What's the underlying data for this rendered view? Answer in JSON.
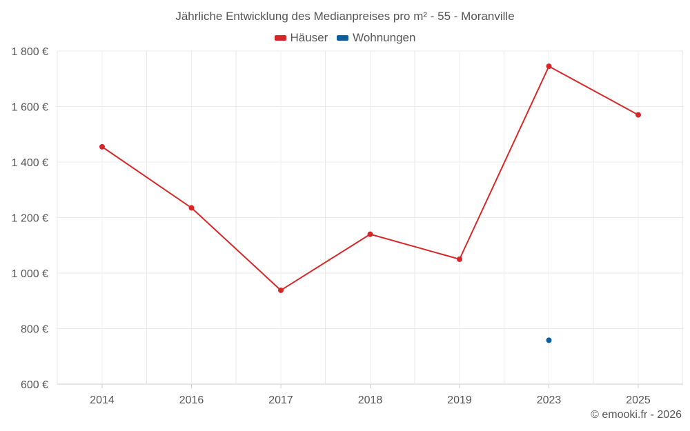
{
  "chart_data": {
    "type": "line",
    "title": "Jährliche Entwicklung des Medianpreises pro m² - 55 - Moranville",
    "categories": [
      "2014",
      "2016",
      "2017",
      "2018",
      "2019",
      "2023",
      "2025"
    ],
    "series": [
      {
        "name": "Häuser",
        "color": "#d62728",
        "values": [
          1455,
          1235,
          938,
          1140,
          1050,
          1745,
          1570
        ]
      },
      {
        "name": "Wohnungen",
        "color": "#0b5fa0",
        "values": [
          null,
          null,
          null,
          null,
          null,
          758,
          null
        ]
      }
    ],
    "ylim": [
      600,
      1800
    ],
    "yticks": [
      600,
      800,
      1000,
      1200,
      1400,
      1600,
      1800
    ],
    "ytick_labels": [
      "600 €",
      "800 €",
      "1 000 €",
      "1 200 €",
      "1 400 €",
      "1 600 €",
      "1 800 €"
    ],
    "xlabel": "",
    "ylabel": "",
    "grid": true,
    "legend_position": "top-center"
  },
  "credit": "© emooki.fr - 2026"
}
